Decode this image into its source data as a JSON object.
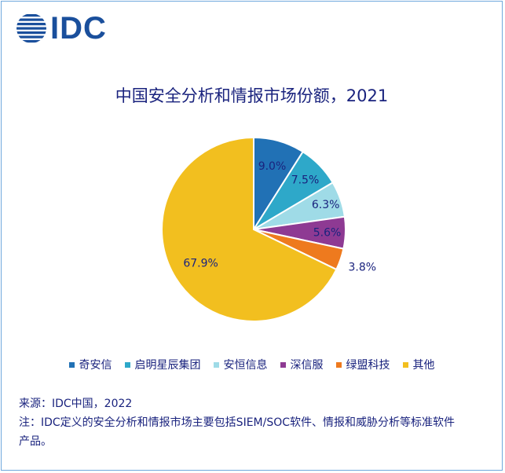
{
  "logo": {
    "text": "IDC"
  },
  "chart_data": {
    "type": "pie",
    "title": "中国安全分析和情报市场份额，2021",
    "categories": [
      "奇安信",
      "启明星辰集团",
      "安恒信息",
      "深信服",
      "绿盟科技",
      "其他"
    ],
    "values": [
      9.0,
      7.5,
      6.3,
      5.6,
      3.8,
      67.9
    ],
    "labels": [
      "9.0%",
      "7.5%",
      "6.3%",
      "5.6%",
      "3.8%",
      "67.9%"
    ],
    "colors": [
      "#2171b5",
      "#2ea8c9",
      "#9fdbe7",
      "#8e3a93",
      "#ee7a1e",
      "#f2bf1f"
    ],
    "unit": "%",
    "legend_position": "bottom"
  },
  "footer": {
    "source": "来源：IDC中国，2022",
    "note_line1": "注：IDC定义的安全分析和情报市场主要包括SIEM/SOC软件、情报和威胁分析等标准软件",
    "note_line2": "产品。"
  }
}
